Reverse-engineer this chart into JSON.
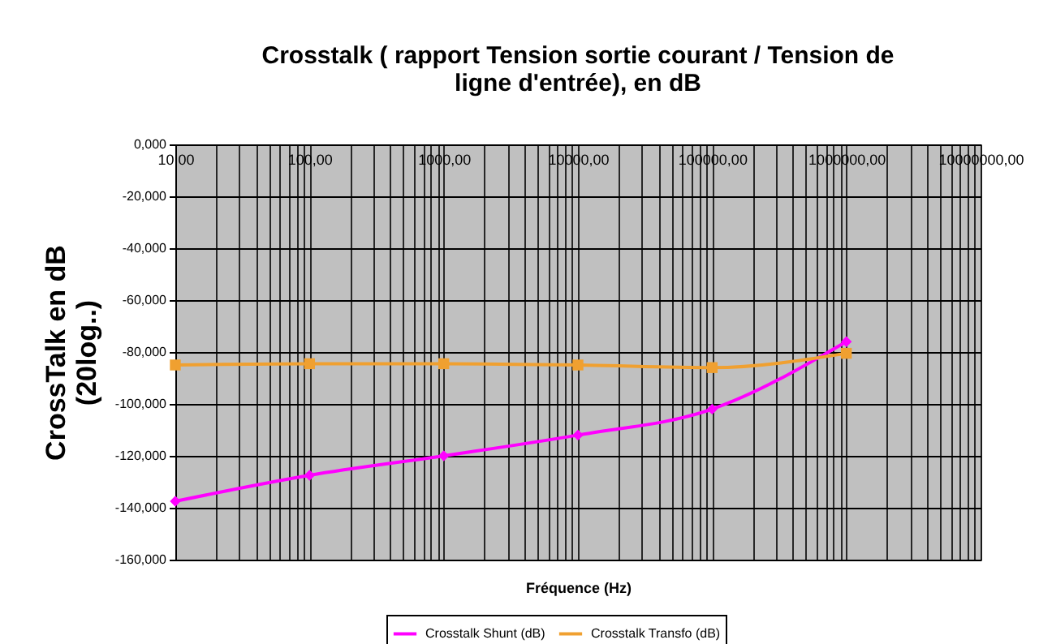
{
  "chart_data": {
    "type": "line",
    "title": "Crosstalk ( rapport Tension sortie courant / Tension de ligne d'entrée), en dB",
    "xlabel": "Fréquence (Hz)",
    "ylabel": "CrossTalk en dB (20log..)",
    "x": [
      10,
      100,
      1000,
      10000,
      100000,
      1000000
    ],
    "series": [
      {
        "name": "Crosstalk Shunt (dB)",
        "color": "#ff00ff",
        "marker": "diamond",
        "values": [
          -137.5,
          -127.5,
          -120,
          -112,
          -102,
          -76
        ]
      },
      {
        "name": "Crosstalk Transfo (dB)",
        "color": "#f0a030",
        "marker": "square",
        "values": [
          -85,
          -84.5,
          -84.5,
          -85,
          -86,
          -80.5
        ]
      }
    ],
    "log": "x",
    "xlim": [
      10,
      10000000
    ],
    "ylim": [
      -160,
      0
    ],
    "xticks": [
      {
        "value": 10,
        "label": "10,00"
      },
      {
        "value": 20,
        "label": null
      },
      {
        "value": 30,
        "label": null
      },
      {
        "value": 40,
        "label": null
      },
      {
        "value": 50,
        "label": null
      },
      {
        "value": 60,
        "label": null
      },
      {
        "value": 70,
        "label": null
      },
      {
        "value": 80,
        "label": null
      },
      {
        "value": 90,
        "label": null
      },
      {
        "value": 100,
        "label": "100,00"
      },
      {
        "value": 200,
        "label": null
      },
      {
        "value": 300,
        "label": null
      },
      {
        "value": 400,
        "label": null
      },
      {
        "value": 500,
        "label": null
      },
      {
        "value": 600,
        "label": null
      },
      {
        "value": 700,
        "label": null
      },
      {
        "value": 800,
        "label": null
      },
      {
        "value": 900,
        "label": null
      },
      {
        "value": 1000,
        "label": "1000,00"
      },
      {
        "value": 2000,
        "label": null
      },
      {
        "value": 3000,
        "label": null
      },
      {
        "value": 4000,
        "label": null
      },
      {
        "value": 5000,
        "label": null
      },
      {
        "value": 6000,
        "label": null
      },
      {
        "value": 7000,
        "label": null
      },
      {
        "value": 8000,
        "label": null
      },
      {
        "value": 9000,
        "label": null
      },
      {
        "value": 10000,
        "label": "10000,00"
      },
      {
        "value": 20000,
        "label": null
      },
      {
        "value": 30000,
        "label": null
      },
      {
        "value": 40000,
        "label": null
      },
      {
        "value": 50000,
        "label": null
      },
      {
        "value": 60000,
        "label": null
      },
      {
        "value": 70000,
        "label": null
      },
      {
        "value": 80000,
        "label": null
      },
      {
        "value": 90000,
        "label": null
      },
      {
        "value": 100000,
        "label": "100000,00"
      },
      {
        "value": 200000,
        "label": null
      },
      {
        "value": 300000,
        "label": null
      },
      {
        "value": 400000,
        "label": null
      },
      {
        "value": 500000,
        "label": null
      },
      {
        "value": 600000,
        "label": null
      },
      {
        "value": 700000,
        "label": null
      },
      {
        "value": 800000,
        "label": null
      },
      {
        "value": 900000,
        "label": null
      },
      {
        "value": 1000000,
        "label": "1000000,00"
      },
      {
        "value": 2000000,
        "label": null
      },
      {
        "value": 3000000,
        "label": null
      },
      {
        "value": 4000000,
        "label": null
      },
      {
        "value": 5000000,
        "label": null
      },
      {
        "value": 6000000,
        "label": null
      },
      {
        "value": 7000000,
        "label": null
      },
      {
        "value": 8000000,
        "label": null
      },
      {
        "value": 9000000,
        "label": null
      },
      {
        "value": 10000000,
        "label": "10000000,00"
      }
    ],
    "yticks": [
      {
        "value": 0,
        "label": "0,000"
      },
      {
        "value": -20,
        "label": "-20,000"
      },
      {
        "value": -40,
        "label": "-40,000"
      },
      {
        "value": -60,
        "label": "-60,000"
      },
      {
        "value": -80,
        "label": "-80,000"
      },
      {
        "value": -100,
        "label": "-100,000"
      },
      {
        "value": -120,
        "label": "-120,000"
      },
      {
        "value": -140,
        "label": "-140,000"
      },
      {
        "value": -160,
        "label": "-160,000"
      }
    ],
    "grid": true,
    "legend": "bottom",
    "line_style": "solid"
  }
}
